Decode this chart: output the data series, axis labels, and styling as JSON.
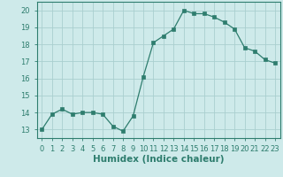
{
  "x": [
    0,
    1,
    2,
    3,
    4,
    5,
    6,
    7,
    8,
    9,
    10,
    11,
    12,
    13,
    14,
    15,
    16,
    17,
    18,
    19,
    20,
    21,
    22,
    23
  ],
  "y": [
    13.0,
    13.9,
    14.2,
    13.9,
    14.0,
    14.0,
    13.9,
    13.2,
    12.9,
    13.8,
    16.1,
    18.1,
    18.5,
    18.9,
    20.0,
    19.8,
    19.8,
    19.6,
    19.3,
    18.9,
    17.8,
    17.6,
    17.1,
    16.9
  ],
  "line_color": "#2e7d6e",
  "marker": "s",
  "marker_size": 2.5,
  "bg_color": "#ceeaea",
  "grid_color": "#aacfcf",
  "xlabel": "Humidex (Indice chaleur)",
  "ylim": [
    12.5,
    20.5
  ],
  "xlim": [
    -0.5,
    23.5
  ],
  "yticks": [
    13,
    14,
    15,
    16,
    17,
    18,
    19,
    20
  ],
  "xticks": [
    0,
    1,
    2,
    3,
    4,
    5,
    6,
    7,
    8,
    9,
    10,
    11,
    12,
    13,
    14,
    15,
    16,
    17,
    18,
    19,
    20,
    21,
    22,
    23
  ],
  "tick_fontsize": 6,
  "xlabel_fontsize": 7.5
}
